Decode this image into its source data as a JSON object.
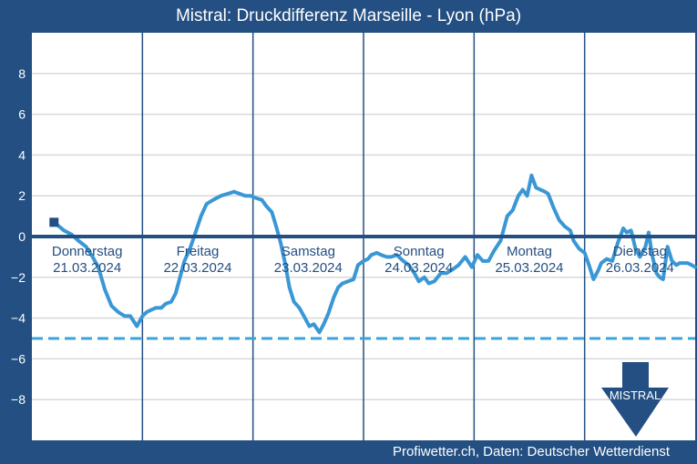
{
  "chart_data": {
    "type": "line",
    "title": "Mistral: Druckdifferenz Marseille - Lyon (hPa)",
    "ylabel": "hPa",
    "ylim": [
      -10,
      10
    ],
    "xlim": [
      0,
      6
    ],
    "y_ticks": [
      8,
      6,
      4,
      2,
      0,
      -2,
      -4,
      -6,
      -8
    ],
    "y_tick_labels": [
      "8",
      "6",
      "4",
      "2",
      "0",
      "−2",
      "−4",
      "−6",
      "−8"
    ],
    "days": [
      {
        "weekday": "Donnerstag",
        "date": "21.03.2024"
      },
      {
        "weekday": "Freitag",
        "date": "22.03.2024"
      },
      {
        "weekday": "Samstag",
        "date": "23.03.2024"
      },
      {
        "weekday": "Sonntag",
        "date": "24.03.2024"
      },
      {
        "weekday": "Montag",
        "date": "25.03.2024"
      },
      {
        "weekday": "Dienstag",
        "date": "26.03.2024"
      }
    ],
    "threshold": {
      "value": -5,
      "style": "dashed"
    },
    "zero_line": 0,
    "start_marker": {
      "x": 0.2,
      "y": 0.7
    },
    "series": [
      {
        "name": "Druckdifferenz Marseille - Lyon",
        "x": [
          0.2,
          0.29,
          0.36,
          0.42,
          0.49,
          0.55,
          0.6,
          0.66,
          0.72,
          0.78,
          0.84,
          0.89,
          0.95,
          1.0,
          1.02,
          1.04,
          1.08,
          1.12,
          1.17,
          1.21,
          1.26,
          1.3,
          1.34,
          1.38,
          1.43,
          1.48,
          1.53,
          1.58,
          1.64,
          1.71,
          1.77,
          1.83,
          1.88,
          1.93,
          1.98,
          2.02,
          2.08,
          2.12,
          2.17,
          2.21,
          2.25,
          2.29,
          2.33,
          2.37,
          2.42,
          2.47,
          2.51,
          2.55,
          2.6,
          2.64,
          2.68,
          2.73,
          2.77,
          2.81,
          2.86,
          2.91,
          2.95,
          3.0,
          3.04,
          3.07,
          3.12,
          3.16,
          3.21,
          3.25,
          3.3,
          3.36,
          3.41,
          3.46,
          3.5,
          3.55,
          3.59,
          3.64,
          3.7,
          3.75,
          3.81,
          3.86,
          3.92,
          3.98,
          4.03,
          4.08,
          4.13,
          4.18,
          4.24,
          4.3,
          4.35,
          4.4,
          4.44,
          4.48,
          4.52,
          4.56,
          4.6,
          4.64,
          4.67,
          4.72,
          4.77,
          4.82,
          4.87,
          4.9,
          4.95,
          5.0,
          5.04,
          5.08,
          5.12,
          5.15,
          5.2,
          5.25,
          5.3,
          5.35,
          5.38,
          5.42,
          5.46,
          5.5,
          5.55,
          5.58,
          5.61,
          5.65,
          5.68,
          5.71,
          5.75,
          5.79,
          5.83,
          5.86,
          5.9,
          5.93,
          5.97,
          6.0
        ],
        "values": [
          0.7,
          0.3,
          0.1,
          -0.2,
          -0.5,
          -1.0,
          -1.5,
          -2.6,
          -3.4,
          -3.7,
          -3.9,
          -3.9,
          -4.4,
          -3.9,
          -3.8,
          -3.7,
          -3.6,
          -3.5,
          -3.5,
          -3.3,
          -3.2,
          -2.8,
          -2.0,
          -1.2,
          -0.6,
          0.2,
          1.0,
          1.6,
          1.8,
          2.0,
          2.1,
          2.2,
          2.1,
          2.0,
          2.0,
          1.9,
          1.8,
          1.5,
          1.2,
          0.5,
          -0.3,
          -1.3,
          -2.5,
          -3.2,
          -3.5,
          -4.0,
          -4.4,
          -4.3,
          -4.7,
          -4.3,
          -3.8,
          -3.0,
          -2.5,
          -2.3,
          -2.2,
          -2.1,
          -1.4,
          -1.2,
          -1.1,
          -0.9,
          -0.8,
          -0.9,
          -1.0,
          -1.0,
          -0.9,
          -1.2,
          -1.4,
          -1.8,
          -2.2,
          -2.0,
          -2.3,
          -2.2,
          -1.8,
          -1.8,
          -1.6,
          -1.4,
          -1.0,
          -1.5,
          -0.9,
          -1.2,
          -1.2,
          -0.7,
          -0.2,
          1.0,
          1.3,
          2.0,
          2.3,
          2.0,
          3.0,
          2.4,
          2.3,
          2.2,
          2.1,
          1.4,
          0.8,
          0.5,
          0.3,
          -0.2,
          -0.6,
          -0.8,
          -1.4,
          -2.1,
          -1.7,
          -1.3,
          -1.1,
          -1.2,
          -0.3,
          0.4,
          0.2,
          0.3,
          -0.6,
          -1.0,
          -0.5,
          0.2,
          -0.9,
          -1.8,
          -2.0,
          -2.1,
          -0.5,
          -1.2,
          -1.4,
          -1.3,
          -1.3,
          -1.3,
          -1.4,
          -1.5
        ]
      }
    ],
    "arrow_label": "MISTRAL",
    "source": "Profiwetter.ch, Daten: Deutscher Wetterdienst",
    "colors": {
      "frame": "#234f82",
      "plot_bg": "#ffffff",
      "grid": "#d9d9d9",
      "day_line": "#234f82",
      "zero_line": "#234f82",
      "series": "#3a97d5",
      "threshold": "#3aa4d8",
      "marker": "#234f82",
      "arrow": "#234f82",
      "label": "#234f82"
    }
  }
}
